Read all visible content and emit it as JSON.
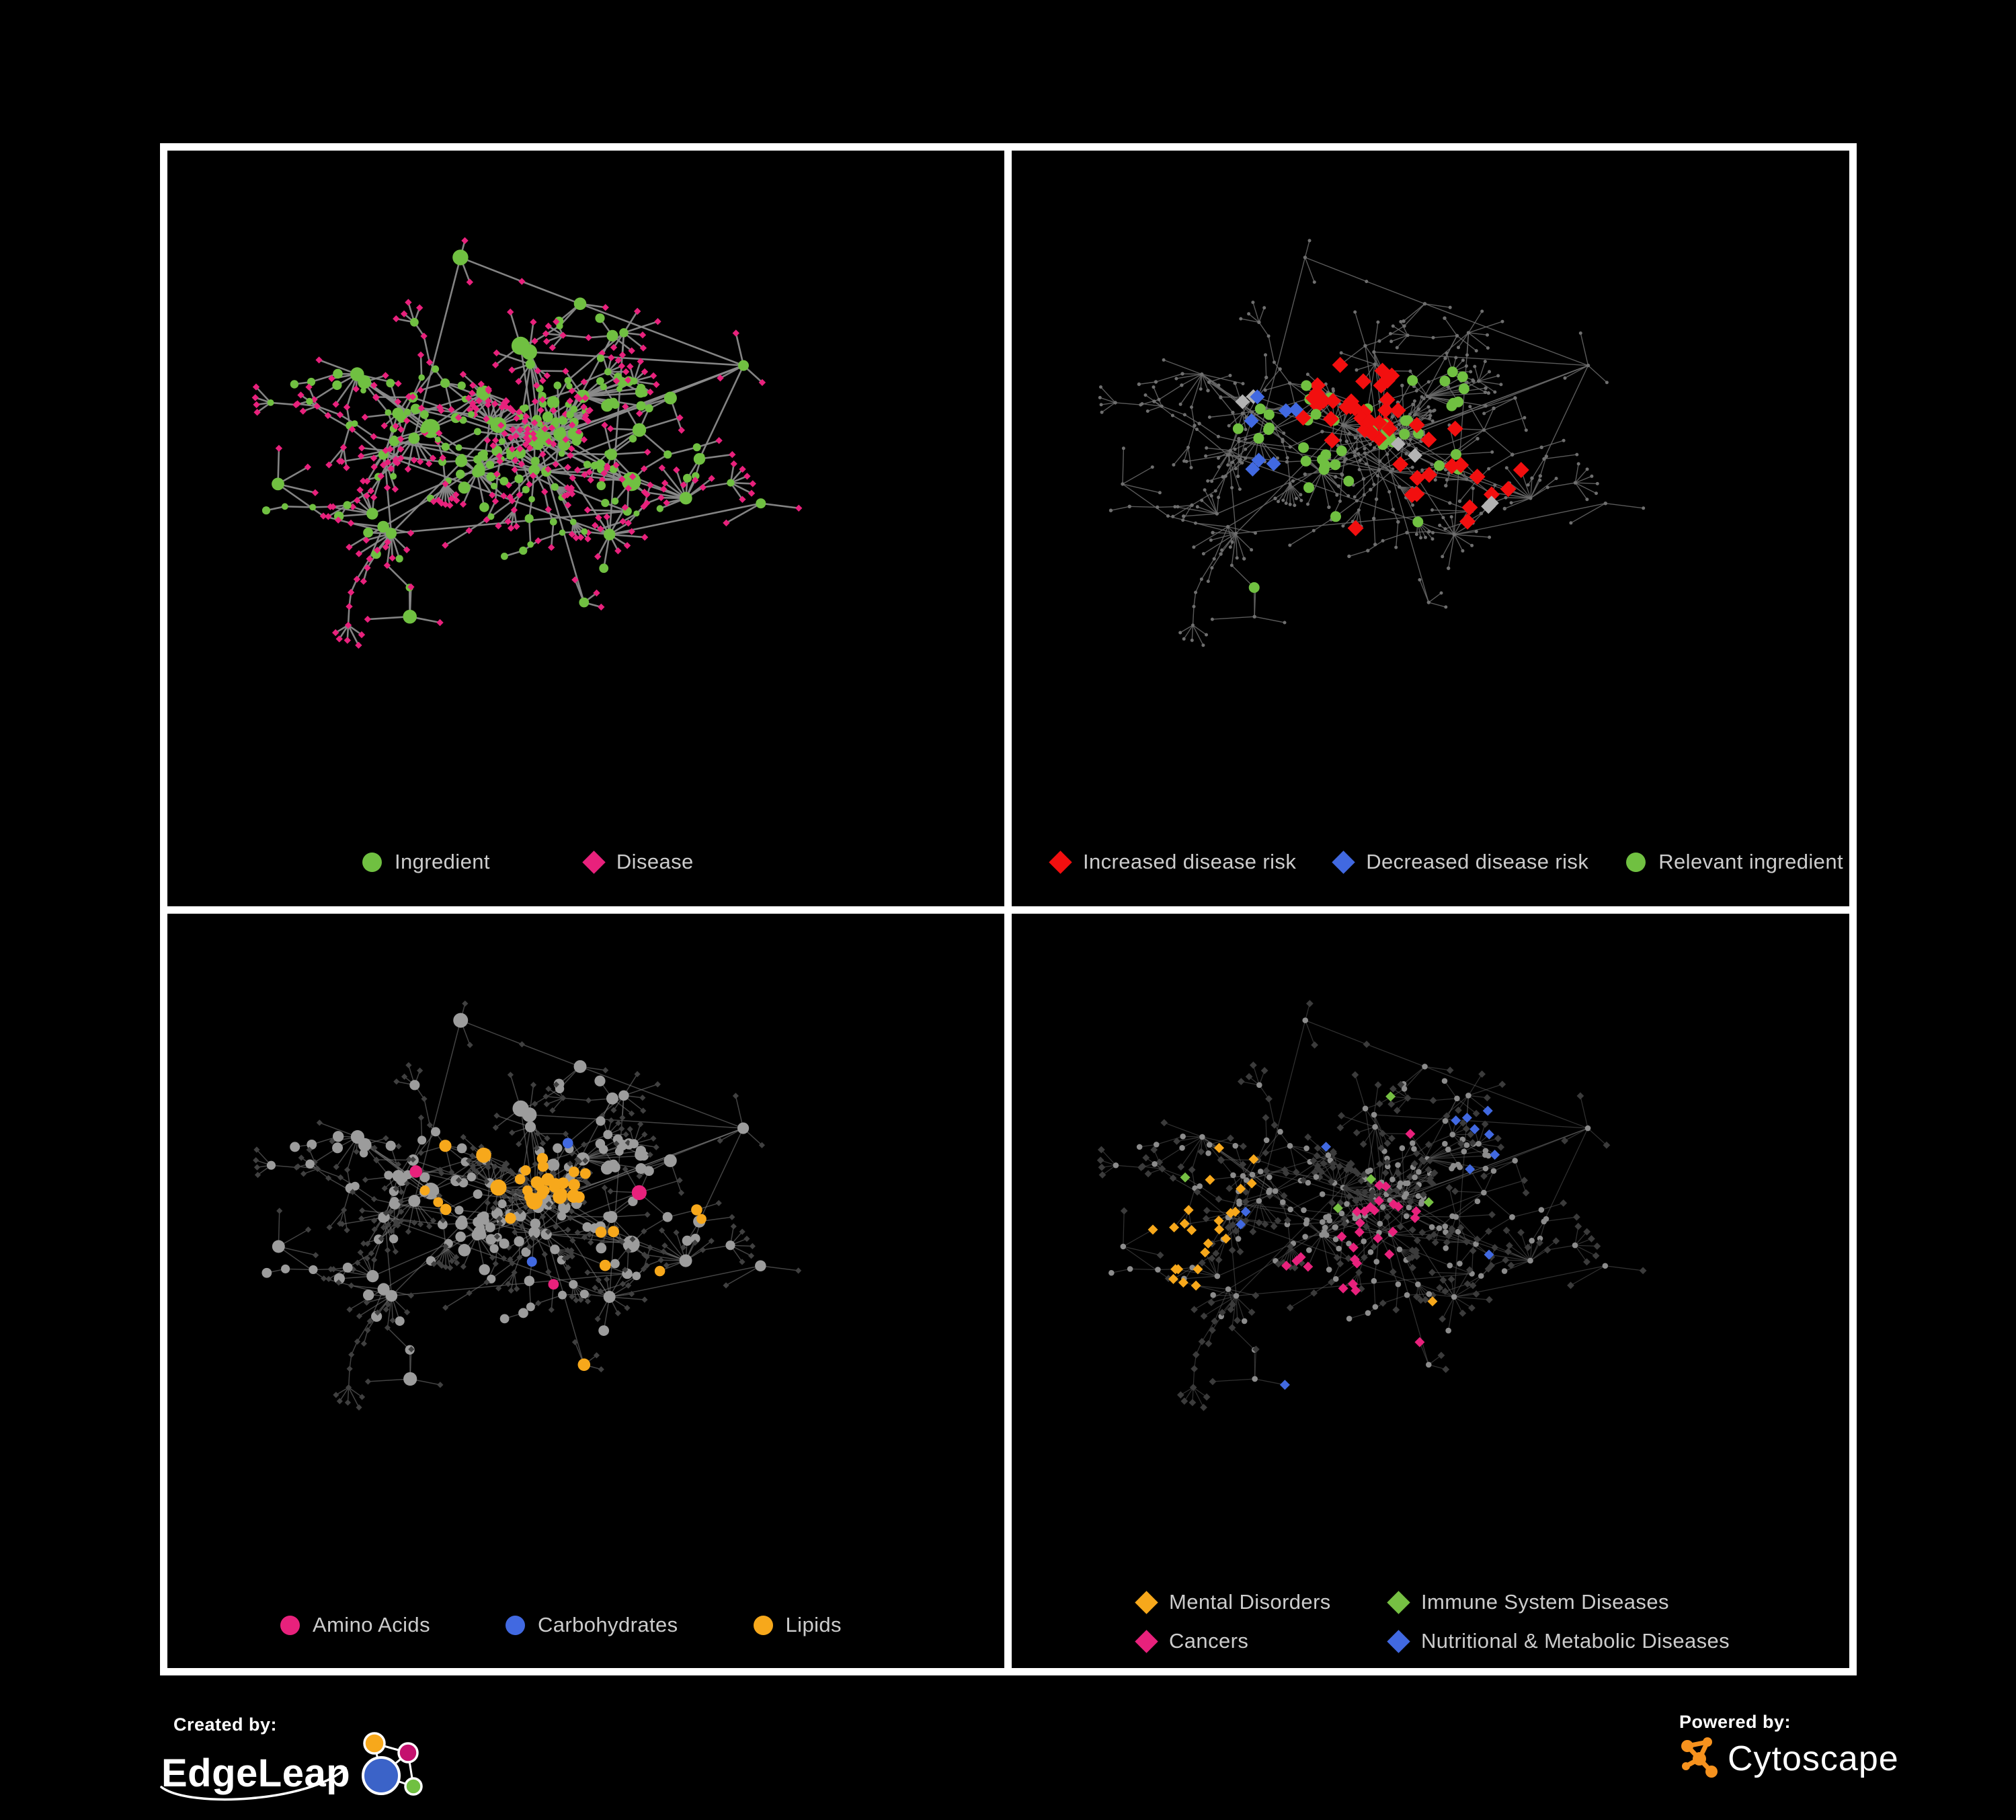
{
  "figure": {
    "background": "#000000",
    "frame_color": "#ffffff"
  },
  "colors": {
    "green": "#70C041",
    "pink": "#E8217C",
    "red": "#F20F0F",
    "blue": "#4169E1",
    "orange": "#F7A81B",
    "silver": "#B3B3B3"
  },
  "footer": {
    "created_by_label": "Created by:",
    "created_by_brand": "EdgeLeap",
    "powered_by_label": "Powered by:",
    "powered_by_brand": "Cytoscape"
  },
  "network": {
    "seed": 11,
    "hubCount": 44,
    "crossEdges": 14,
    "blobs": [
      [
        0.46,
        0.37,
        0.05,
        22
      ],
      [
        0.36,
        0.45,
        0.04,
        14
      ],
      [
        0.55,
        0.33,
        0.035,
        12
      ]
    ]
  },
  "panels": [
    {
      "name": "ingredient-disease-network",
      "legend": [
        {
          "label": "Ingredient",
          "shape": "circle",
          "color": "#70C041"
        },
        {
          "label": "Disease",
          "shape": "diamond",
          "color": "#E8217C"
        }
      ],
      "overlaySeed": 101,
      "style": {
        "edge": "#8A8A8A",
        "ew": 2.6,
        "eo": 0.95,
        "ing": {
          "shape": "circle",
          "color": "#70C041",
          "rMul": 1.12,
          "rAdd": 0.5
        },
        "dis": {
          "shape": "diamond",
          "color": "#E8217C",
          "size": 5.2
        }
      },
      "overlays": []
    },
    {
      "name": "disease-risk-network",
      "legend": [
        {
          "label": "Increased disease risk",
          "shape": "diamond",
          "color": "#F20F0F"
        },
        {
          "label": "Decreased disease risk",
          "shape": "diamond",
          "color": "#4169E1"
        },
        {
          "label": "Relevant ingredient",
          "shape": "circle",
          "color": "#70C041"
        }
      ],
      "overlaySeed": 102,
      "style": {
        "edge": "#6A6A6A",
        "ew": 1.4,
        "eo": 0.85,
        "ing": {
          "shape": "circle",
          "color": "#6F6F6F",
          "rFix": 2.7
        },
        "dis": {
          "shape": "circle",
          "color": "#6F6F6F",
          "rFix": 2.5
        }
      },
      "overlays": [
        {
          "name": "increased-disease-risk",
          "applies": "d",
          "shape": "diamond",
          "color": "#F20F0F",
          "size": 12,
          "centers": [
            [
              0.4,
              0.36,
              0.09,
              0.55
            ],
            [
              0.5,
              0.43,
              0.08,
              0.5
            ],
            [
              0.56,
              0.49,
              0.06,
              0.45
            ],
            [
              0.35,
              0.3,
              0.05,
              0.4
            ],
            [
              0.62,
              0.45,
              0.04,
              0.35
            ],
            [
              0.76,
              0.63,
              0.05,
              0.55
            ],
            [
              0.44,
              0.55,
              0.04,
              0.3
            ]
          ],
          "scatter": 0.003
        },
        {
          "name": "decreased-disease-risk",
          "applies": "d",
          "shape": "diamond",
          "color": "#4169E1",
          "size": 11,
          "centers": [
            [
              0.29,
              0.36,
              0.045,
              0.6
            ],
            [
              0.3,
              0.45,
              0.04,
              0.5
            ],
            [
              0.84,
              0.17,
              0.03,
              0.95
            ]
          ],
          "scatter": 0
        },
        {
          "name": "neutral-association",
          "applies": "d",
          "shape": "diamond",
          "color": "#B3B3B3",
          "size": 11,
          "centers": [
            [
              0.26,
              0.32,
              0.03,
              0.4
            ],
            [
              0.47,
              0.42,
              0.05,
              0.12
            ],
            [
              0.57,
              0.52,
              0.04,
              0.25
            ],
            [
              0.5,
              0.63,
              0.04,
              0.3
            ],
            [
              0.66,
              0.56,
              0.03,
              0.3
            ]
          ],
          "scatter": 0.002
        },
        {
          "name": "relevant-ingredient",
          "applies": "i",
          "shape": "circle",
          "color": "#70C041",
          "size": 8,
          "centers": [
            [
              0.44,
              0.39,
              0.16,
              0.45
            ],
            [
              0.3,
              0.4,
              0.08,
              0.5
            ],
            [
              0.54,
              0.31,
              0.09,
              0.35
            ],
            [
              0.63,
              0.66,
              0.05,
              0.6
            ],
            [
              0.25,
              0.62,
              0.05,
              0.35
            ],
            [
              0.14,
              0.42,
              0.05,
              0.4
            ]
          ],
          "scatter": 0.02
        }
      ]
    },
    {
      "name": "nutrient-class-network",
      "legend": [
        {
          "label": "Amino Acids",
          "shape": "circle",
          "color": "#E8217C"
        },
        {
          "label": "Carbohydrates",
          "shape": "circle",
          "color": "#4169E1"
        },
        {
          "label": "Lipids",
          "shape": "circle",
          "color": "#F7A81B"
        }
      ],
      "overlaySeed": 103,
      "style": {
        "edge": "#7A7A7A",
        "ew": 1.5,
        "eo": 0.55,
        "ing": {
          "shape": "circle",
          "color": "#9C9C9C",
          "rMul": 0.72,
          "rAdd": 3.8
        },
        "dis": {
          "shape": "diamond",
          "color": "#404040",
          "size": 4.6
        }
      },
      "overlays": [
        {
          "name": "lipids",
          "applies": "i",
          "shape": "circle",
          "color": "#F7A81B",
          "centers": [
            [
              0.46,
              0.36,
              0.06,
              0.8
            ],
            [
              0.4,
              0.3,
              0.05,
              0.45
            ],
            [
              0.55,
              0.47,
              0.04,
              0.7
            ],
            [
              0.3,
              0.42,
              0.05,
              0.3
            ],
            [
              0.63,
              0.52,
              0.04,
              0.35
            ],
            [
              0.24,
              0.5,
              0.04,
              0.3
            ]
          ],
          "scatter": 0.035
        },
        {
          "name": "carbohydrates",
          "applies": "i",
          "shape": "circle",
          "color": "#4169E1",
          "centers": [
            [
              0.46,
              0.36,
              0.05,
              0.22
            ],
            [
              0.6,
              0.6,
              0.03,
              0.3
            ],
            [
              0.08,
              0.28,
              0.02,
              0.6
            ]
          ],
          "scatter": 0.008
        },
        {
          "name": "amino-acids",
          "applies": "i",
          "shape": "circle",
          "color": "#E8217C",
          "centers": [
            [
              0.6,
              0.72,
              0.07,
              0.5
            ],
            [
              0.2,
              0.72,
              0.05,
              0.35
            ],
            [
              0.7,
              0.3,
              0.04,
              0.5
            ],
            [
              0.1,
              0.32,
              0.03,
              0.5
            ]
          ],
          "scatter": 0.04
        }
      ]
    },
    {
      "name": "disease-category-network",
      "legend": [
        {
          "label": "Mental Disorders",
          "shape": "diamond",
          "color": "#F7A81B"
        },
        {
          "label": "Immune System Diseases",
          "shape": "diamond",
          "color": "#76C043"
        },
        {
          "label": "Cancers",
          "shape": "diamond",
          "color": "#E8217C"
        },
        {
          "label": "Nutritional & Metabolic Diseases",
          "shape": "diamond",
          "color": "#4169E1"
        }
      ],
      "overlaySeed": 104,
      "style": {
        "edge": "#5F5F5F",
        "ew": 1.25,
        "eo": 0.5,
        "ing": {
          "shape": "circle",
          "color": "#8C8C8C",
          "rFix": 4.3
        },
        "dis": {
          "shape": "diamond",
          "color": "#3B3B3B",
          "size": 5.4
        }
      },
      "overlays": [
        {
          "name": "mental-disorders",
          "applies": "d",
          "shape": "diamond",
          "color": "#F7A81B",
          "size": 7.5,
          "centers": [
            [
              0.17,
              0.46,
              0.09,
              0.92
            ],
            [
              0.25,
              0.36,
              0.05,
              0.4
            ],
            [
              0.3,
              0.15,
              0.04,
              0.5
            ],
            [
              0.1,
              0.6,
              0.04,
              0.3
            ]
          ],
          "scatter": 0.01
        },
        {
          "name": "cancers",
          "applies": "d",
          "shape": "diamond",
          "color": "#E8217C",
          "size": 7.5,
          "centers": [
            [
              0.37,
              0.52,
              0.08,
              0.7
            ],
            [
              0.45,
              0.42,
              0.05,
              0.45
            ],
            [
              0.87,
              0.23,
              0.04,
              0.8
            ],
            [
              0.55,
              0.75,
              0.04,
              0.4
            ]
          ],
          "scatter": 0.012
        },
        {
          "name": "immune-system-diseases",
          "applies": "d",
          "shape": "diamond",
          "color": "#76C043",
          "size": 7.5,
          "centers": [
            [
              0.42,
              0.45,
              0.1,
              0.05
            ]
          ],
          "scatter": 0.012
        },
        {
          "name": "nutritional-metabolic-diseases",
          "applies": "d",
          "shape": "diamond",
          "color": "#4169E1",
          "size": 7.5,
          "centers": [
            [
              0.46,
              0.61,
              0.05,
              0.85
            ],
            [
              0.65,
              0.3,
              0.15,
              0.3
            ],
            [
              0.48,
              0.08,
              0.12,
              0.3
            ],
            [
              0.75,
              0.55,
              0.07,
              0.3
            ],
            [
              0.3,
              0.7,
              0.05,
              0.2
            ],
            [
              0.2,
              0.08,
              0.07,
              0.3
            ]
          ],
          "scatter": 0.03
        }
      ]
    }
  ]
}
